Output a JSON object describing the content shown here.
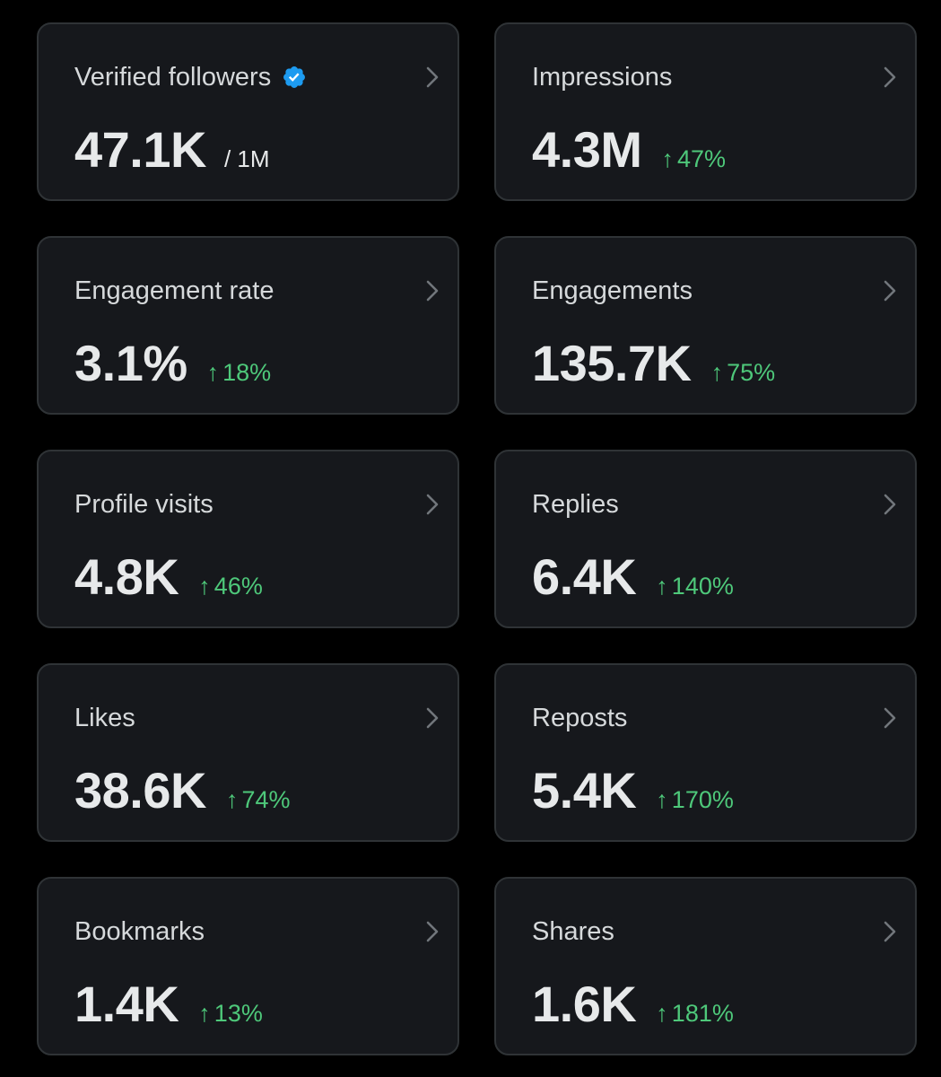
{
  "colors": {
    "background": "#000000",
    "card": "#16181c",
    "card_border": "#2f3336",
    "label": "#d6d9db",
    "value": "#e7e9ea",
    "positive": "#4ec87a",
    "verified": "#1d9bf0",
    "chevron": "#71767b"
  },
  "cards": [
    {
      "label": "Verified followers",
      "value": "47.1K",
      "total": "/ 1M",
      "icon": "verified-badge-icon"
    },
    {
      "label": "Impressions",
      "value": "4.3M",
      "change": "47%",
      "change_arrow": "↑"
    },
    {
      "label": "Engagement rate",
      "value": "3.1%",
      "change": "18%",
      "change_arrow": "↑"
    },
    {
      "label": "Engagements",
      "value": "135.7K",
      "change": "75%",
      "change_arrow": "↑"
    },
    {
      "label": "Profile visits",
      "value": "4.8K",
      "change": "46%",
      "change_arrow": "↑"
    },
    {
      "label": "Replies",
      "value": "6.4K",
      "change": "140%",
      "change_arrow": "↑"
    },
    {
      "label": "Likes",
      "value": "38.6K",
      "change": "74%",
      "change_arrow": "↑"
    },
    {
      "label": "Reposts",
      "value": "5.4K",
      "change": "170%",
      "change_arrow": "↑"
    },
    {
      "label": "Bookmarks",
      "value": "1.4K",
      "change": "13%",
      "change_arrow": "↑"
    },
    {
      "label": "Shares",
      "value": "1.6K",
      "change": "181%",
      "change_arrow": "↑"
    }
  ]
}
